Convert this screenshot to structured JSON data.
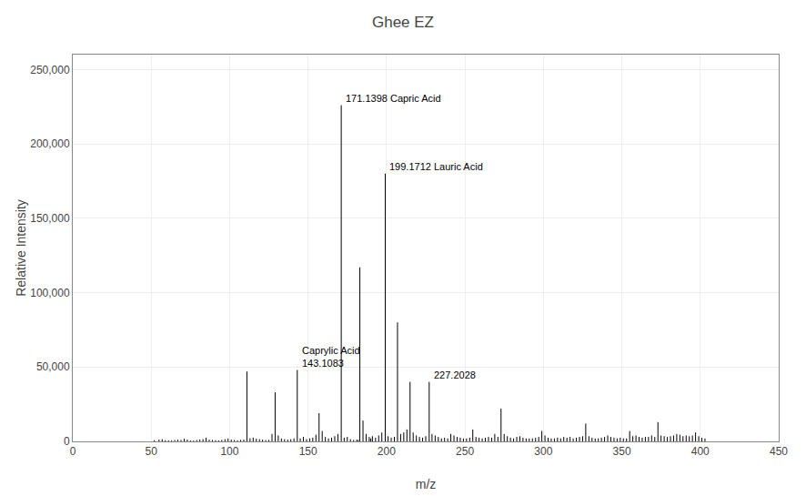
{
  "chart_data": {
    "type": "stem",
    "title": "Ghee EZ",
    "xlabel": "m/z",
    "ylabel": "Relative Intensity",
    "color": "#000000",
    "grid": true,
    "xlim": [
      0,
      450
    ],
    "ylim": [
      0,
      260000
    ],
    "xticks": [
      0,
      50,
      100,
      150,
      200,
      250,
      300,
      350,
      400,
      450
    ],
    "yticks": [
      0,
      {
        "value": 50000,
        "label": "50,000"
      },
      {
        "value": 100000,
        "label": "100,000"
      },
      {
        "value": 150000,
        "label": "150,000"
      },
      {
        "value": 200000,
        "label": "200,000"
      },
      {
        "value": 250000,
        "label": "250,000"
      }
    ],
    "annotations": [
      {
        "x": 171.1398,
        "y": 226000,
        "label": "171.1398 Capric Acid"
      },
      {
        "x": 199.1712,
        "y": 180000,
        "label": "199.1712 Lauric Acid"
      },
      {
        "x": 143.1083,
        "y": 48000,
        "label": "Caprylic Acid\n143.1083"
      },
      {
        "x": 227.2028,
        "y": 40000,
        "label": "227.2028"
      }
    ],
    "x": [
      52,
      55,
      57,
      59,
      61,
      63,
      65,
      67,
      69,
      71,
      73,
      75,
      77,
      79,
      81,
      83,
      85,
      87,
      89,
      91,
      93,
      95,
      97,
      99,
      101,
      103,
      105,
      107,
      109,
      111,
      113,
      115,
      117,
      119,
      121,
      123,
      125,
      127,
      129,
      131,
      133,
      135,
      137,
      139,
      141,
      143.1083,
      145,
      147,
      149,
      151,
      153,
      155,
      157,
      159,
      161,
      163,
      165,
      167,
      169,
      171.1398,
      173,
      175,
      177,
      179,
      181,
      182,
      183,
      185,
      187,
      189,
      190,
      191,
      193,
      195,
      197,
      199.1712,
      201,
      203,
      205,
      207,
      209,
      211,
      213,
      215,
      217,
      219,
      221,
      223,
      225,
      227.2028,
      229,
      231,
      233,
      235,
      237,
      239,
      241,
      243,
      245,
      247,
      249,
      251,
      253,
      255,
      257,
      259,
      261,
      263,
      265,
      267,
      269,
      271,
      273,
      275,
      277,
      279,
      281,
      283,
      285,
      287,
      289,
      291,
      293,
      295,
      297,
      299,
      301,
      303,
      305,
      307,
      309,
      311,
      313,
      315,
      317,
      319,
      321,
      323,
      325,
      327,
      329,
      331,
      333,
      335,
      337,
      339,
      341,
      343,
      345,
      347,
      349,
      351,
      353,
      355,
      357,
      359,
      361,
      363,
      365,
      367,
      369,
      371,
      373,
      375,
      377,
      379,
      381,
      383,
      385,
      387,
      389,
      391,
      393,
      395,
      397,
      399,
      401,
      403
    ],
    "values": [
      800,
      1200,
      1500,
      800,
      600,
      700,
      900,
      1100,
      1000,
      1800,
      1200,
      700,
      600,
      900,
      1300,
      1500,
      2500,
      1200,
      900,
      800,
      700,
      1000,
      1500,
      2000,
      1200,
      900,
      700,
      1000,
      1200,
      47000,
      2000,
      2500,
      1800,
      1500,
      1200,
      900,
      1000,
      5000,
      33000,
      4000,
      2000,
      1500,
      1200,
      1500,
      2000,
      48000,
      2000,
      3000,
      1500,
      2000,
      2500,
      4500,
      19000,
      7000,
      3000,
      2000,
      2500,
      3500,
      5000,
      226000,
      2500,
      3000,
      1500,
      1000,
      1200,
      1000,
      117000,
      14000,
      5000,
      3000,
      2000,
      3500,
      2500,
      4000,
      6000,
      180000,
      3500,
      2500,
      3000,
      80000,
      5000,
      6000,
      8000,
      40000,
      6000,
      4000,
      3000,
      2500,
      3500,
      40000,
      5000,
      4000,
      3000,
      2000,
      2500,
      2000,
      5000,
      4000,
      3000,
      2500,
      2000,
      2000,
      2500,
      8000,
      3000,
      2500,
      2000,
      2500,
      3000,
      2500,
      5000,
      3000,
      22000,
      5000,
      3500,
      2500,
      2000,
      3000,
      3500,
      2500,
      2000,
      2000,
      2000,
      2500,
      3000,
      7000,
      4000,
      2500,
      2000,
      2000,
      2500,
      2000,
      3000,
      2500,
      3000,
      2000,
      2500,
      3000,
      3500,
      12000,
      3500,
      2500,
      2000,
      2000,
      2500,
      3000,
      4000,
      3000,
      2500,
      2000,
      2500,
      2000,
      2000,
      7000,
      3500,
      4000,
      3000,
      2500,
      3000,
      3000,
      4000,
      3000,
      13000,
      4000,
      3500,
      3000,
      3500,
      4000,
      5000,
      4500,
      3500,
      4000,
      3500,
      4000,
      6000,
      3500,
      2500,
      2000
    ]
  }
}
